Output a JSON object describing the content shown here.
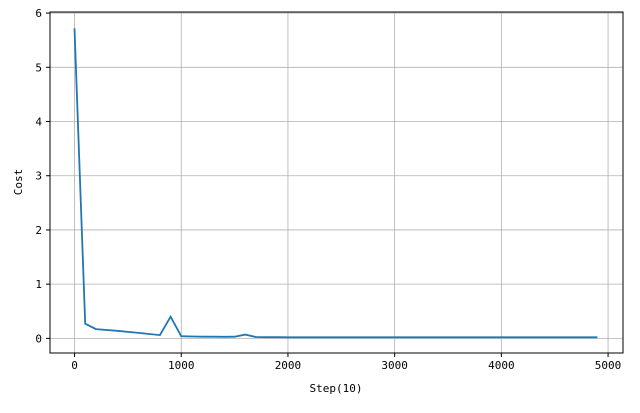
{
  "chart_data": {
    "type": "line",
    "title": "",
    "xlabel": "Step(10)",
    "ylabel": "Cost",
    "xlim": [
      -230,
      5140
    ],
    "ylim": [
      -0.27,
      6.02
    ],
    "xticks": [
      0,
      1000,
      2000,
      3000,
      4000,
      5000
    ],
    "yticks": [
      0,
      1,
      2,
      3,
      4,
      5,
      6
    ],
    "grid": true,
    "color": "#1f77b4",
    "series": [
      {
        "x": [
          0,
          100,
          200,
          300,
          400,
          500,
          600,
          700,
          800,
          900,
          1000,
          1100,
          1200,
          1300,
          1400,
          1500,
          1600,
          1700,
          1800,
          1900,
          2000,
          2500,
          3000,
          3500,
          4000,
          4500,
          4900
        ],
        "y": [
          5.72,
          0.27,
          0.17,
          0.155,
          0.14,
          0.12,
          0.1,
          0.08,
          0.06,
          0.4,
          0.04,
          0.035,
          0.03,
          0.03,
          0.028,
          0.03,
          0.07,
          0.025,
          0.022,
          0.022,
          0.02,
          0.02,
          0.02,
          0.02,
          0.02,
          0.02,
          0.02
        ]
      }
    ]
  }
}
